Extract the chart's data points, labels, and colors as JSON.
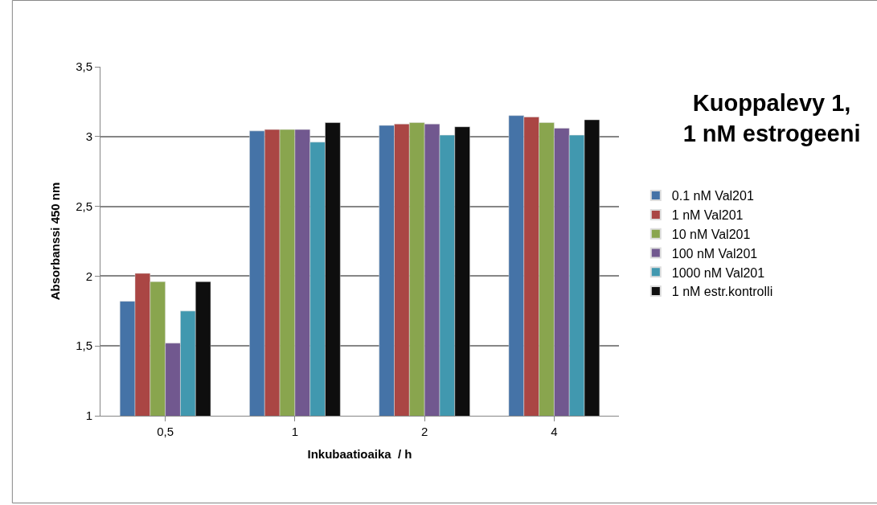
{
  "chart_data": {
    "type": "bar",
    "title": "Kuoppalevy 1,\n1 nM estrogeeni",
    "xlabel": "Inkubaatioaika  / h",
    "ylabel": "Absorbanssi 450 nm",
    "categories": [
      "0,5",
      "1",
      "2",
      "4"
    ],
    "series": [
      {
        "name": "0.1 nM Val201",
        "color": "#4573a7",
        "values": [
          1.82,
          3.04,
          3.08,
          3.15
        ]
      },
      {
        "name": "1 nM Val201",
        "color": "#aa4644",
        "values": [
          2.02,
          3.05,
          3.09,
          3.14
        ]
      },
      {
        "name": "10 nM Val201",
        "color": "#89a54e",
        "values": [
          1.96,
          3.05,
          3.1,
          3.1
        ]
      },
      {
        "name": "100 nM Val201",
        "color": "#71588f",
        "values": [
          1.52,
          3.05,
          3.09,
          3.06
        ]
      },
      {
        "name": "1000 nM Val201",
        "color": "#4198af",
        "values": [
          1.75,
          2.96,
          3.01,
          3.01
        ]
      },
      {
        "name": "1 nM estr.kontrolli",
        "color": "#0e0e0e",
        "values": [
          1.96,
          3.1,
          3.07,
          3.12
        ]
      }
    ],
    "ylim": [
      1,
      3.5
    ],
    "yticks": [
      {
        "value": 1,
        "label": "1"
      },
      {
        "value": 1.5,
        "label": "1,5"
      },
      {
        "value": 2,
        "label": "2"
      },
      {
        "value": 2.5,
        "label": "2,5"
      },
      {
        "value": 3,
        "label": "3"
      },
      {
        "value": 3.5,
        "label": "3,5"
      }
    ],
    "grid": "y",
    "legend": "right"
  }
}
